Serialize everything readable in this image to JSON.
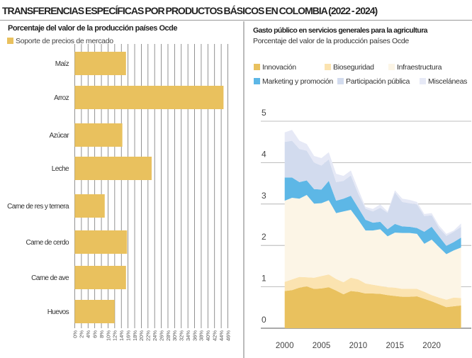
{
  "header": {
    "title": "TRANSFERENCIAS ESPECÍFICAS POR PRODUCTOS BÁSICOS EN COLOMBIA (2022 - 2024)"
  },
  "chart_data": [
    {
      "type": "bar",
      "orientation": "horizontal",
      "title": "Porcentaje del valor de la producción países Ocde",
      "legend": [
        "Soporte de precios de mercado"
      ],
      "color": "#E9C15E",
      "categories": [
        "Maíz",
        "Arroz",
        "Azúcar",
        "Leche",
        "Carne de res y ternera",
        "Carne de cerdo",
        "Carne de ave",
        "Huevos"
      ],
      "values": [
        15.4,
        44.7,
        14.3,
        23.1,
        9.0,
        15.7,
        15.4,
        12.0
      ],
      "xlim": [
        0,
        46
      ],
      "xticks": [
        "0%",
        "2%",
        "4%",
        "6%",
        "8%",
        "10%",
        "12%",
        "14%",
        "16%",
        "18%",
        "20%",
        "22%",
        "24%",
        "26%",
        "28%",
        "30%",
        "32%",
        "34%",
        "36%",
        "38%",
        "40%",
        "42%",
        "44%",
        "46%"
      ],
      "grid": true
    },
    {
      "type": "area",
      "stacked": true,
      "title": "Gasto público en servicios generales para la agricultura",
      "subtitle": "Porcentaje del valor de la producción países Ocde",
      "x": [
        2000,
        2001,
        2002,
        2003,
        2004,
        2005,
        2006,
        2007,
        2008,
        2009,
        2010,
        2011,
        2012,
        2013,
        2014,
        2015,
        2016,
        2017,
        2018,
        2019,
        2020,
        2021,
        2022,
        2023,
        2024
      ],
      "xticks": [
        "2000",
        "2005",
        "2010",
        "2015",
        "2020"
      ],
      "yticks": [
        "0",
        "1",
        "2",
        "3",
        "4",
        "5"
      ],
      "ylim": [
        0,
        5
      ],
      "xlim": [
        2000,
        2024
      ],
      "grid": true,
      "legend_position": "top",
      "series": [
        {
          "name": "Innovación",
          "color": "#E9C15E",
          "values": [
            0.9,
            0.92,
            0.98,
            1.01,
            0.95,
            0.96,
            0.99,
            0.91,
            0.82,
            0.9,
            0.88,
            0.84,
            0.84,
            0.83,
            0.8,
            0.78,
            0.76,
            0.76,
            0.77,
            0.71,
            0.65,
            0.58,
            0.51,
            0.53,
            0.55
          ]
        },
        {
          "name": "Bioseguridad",
          "color": "#FBE3B0",
          "values": [
            0.22,
            0.26,
            0.26,
            0.22,
            0.27,
            0.3,
            0.31,
            0.28,
            0.29,
            0.32,
            0.3,
            0.24,
            0.21,
            0.19,
            0.19,
            0.2,
            0.19,
            0.19,
            0.18,
            0.17,
            0.15,
            0.16,
            0.18,
            0.21,
            0.18
          ]
        },
        {
          "name": "Infraestructura",
          "color": "#FCF5E6",
          "values": [
            1.96,
            1.97,
            1.89,
            1.99,
            1.79,
            1.76,
            1.79,
            1.59,
            1.71,
            1.64,
            1.44,
            1.28,
            1.31,
            1.37,
            1.23,
            1.33,
            1.35,
            1.35,
            1.33,
            1.16,
            1.34,
            1.22,
            1.1,
            1.14,
            1.22
          ]
        },
        {
          "name": "Marketing y promoción",
          "color": "#5DB7E6",
          "values": [
            0.56,
            0.49,
            0.4,
            0.35,
            0.35,
            0.33,
            0.47,
            0.3,
            0.31,
            0.34,
            0.29,
            0.26,
            0.19,
            0.18,
            0.17,
            0.21,
            0.16,
            0.15,
            0.14,
            0.29,
            0.31,
            0.26,
            0.2,
            0.2,
            0.24
          ]
        },
        {
          "name": "Participación pública",
          "color": "#D2DBEE",
          "values": [
            0.86,
            0.89,
            0.8,
            0.72,
            0.64,
            0.58,
            0.52,
            0.45,
            0.43,
            0.49,
            0.34,
            0.27,
            0.27,
            0.34,
            0.4,
            0.76,
            0.59,
            0.57,
            0.57,
            0.38,
            0.28,
            0.2,
            0.24,
            0.25,
            0.26
          ]
        },
        {
          "name": "Misceláneas",
          "color": "#E6E9F6",
          "values": [
            0.23,
            0.26,
            0.2,
            0.16,
            0.16,
            0.18,
            0.17,
            0.2,
            0.12,
            0.12,
            0.11,
            0.04,
            0.06,
            0.08,
            0.03,
            0.05,
            0.08,
            0.08,
            0.06,
            0.05,
            0.05,
            0.06,
            0.05,
            0.03,
            0.08
          ]
        }
      ]
    }
  ]
}
